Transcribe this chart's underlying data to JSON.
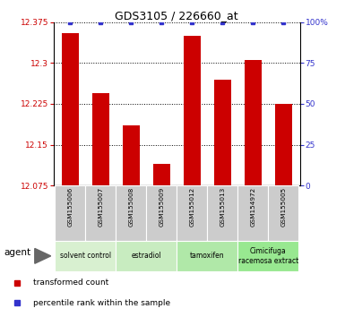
{
  "title": "GDS3105 / 226660_at",
  "samples": [
    "GSM155006",
    "GSM155007",
    "GSM155008",
    "GSM155009",
    "GSM155012",
    "GSM155013",
    "GSM154972",
    "GSM155005"
  ],
  "bar_values": [
    12.355,
    12.245,
    12.185,
    12.115,
    12.35,
    12.27,
    12.305,
    12.225
  ],
  "percentile_values": [
    100,
    100,
    100,
    100,
    100,
    100,
    100,
    100
  ],
  "bar_color": "#cc0000",
  "percentile_color": "#3333cc",
  "ylim_left": [
    12.075,
    12.375
  ],
  "ylim_right": [
    0,
    100
  ],
  "yticks_left": [
    12.075,
    12.15,
    12.225,
    12.3,
    12.375
  ],
  "yticks_right": [
    0,
    25,
    50,
    75,
    100
  ],
  "ytick_labels_left": [
    "12.075",
    "12.15",
    "12.225",
    "12.3",
    "12.375"
  ],
  "ytick_labels_right": [
    "0",
    "25",
    "50",
    "75",
    "100%"
  ],
  "groups": [
    {
      "label": "solvent control",
      "start": 0,
      "end": 1,
      "color": "#d8f0d0"
    },
    {
      "label": "estradiol",
      "start": 2,
      "end": 3,
      "color": "#c8ecc0"
    },
    {
      "label": "tamoxifen",
      "start": 4,
      "end": 5,
      "color": "#b0e8a8"
    },
    {
      "label": "Cimicifuga\nracemosa extract",
      "start": 6,
      "end": 7,
      "color": "#98e890"
    }
  ],
  "agent_label": "agent",
  "legend_items": [
    {
      "label": "transformed count",
      "color": "#cc0000"
    },
    {
      "label": "percentile rank within the sample",
      "color": "#3333cc"
    }
  ],
  "background_color": "#ffffff",
  "sample_box_color": "#cccccc",
  "bar_width": 0.55
}
